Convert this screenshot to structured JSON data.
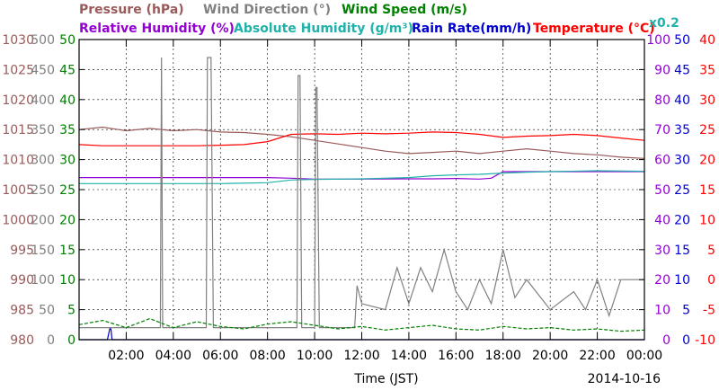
{
  "chart_data": {
    "type": "line",
    "date": "2014-10-16",
    "xlabel": "Time (JST)",
    "x_range_hours": [
      0,
      24
    ],
    "x_ticks": [
      "02:00",
      "04:00",
      "06:00",
      "08:00",
      "10:00",
      "12:00",
      "14:00",
      "16:00",
      "18:00",
      "20:00",
      "22:00",
      "00:00"
    ],
    "grid": true,
    "legend": [
      {
        "key": "pressure",
        "text": "Pressure (hPa)",
        "color": "#9a5a5a"
      },
      {
        "key": "wdir",
        "text": "Wind Direction (°)",
        "color": "#808080"
      },
      {
        "key": "wspd",
        "text": "Wind Speed (m/s)",
        "color": "#008000"
      },
      {
        "key": "rh",
        "text": "Relative Humidity (%)",
        "color": "#9400d3"
      },
      {
        "key": "ah",
        "text": "Absolute Humidity (g/m³)",
        "color": "#20b2aa"
      },
      {
        "key": "ah_factor",
        "text": "x0.2",
        "color": "#20b2aa"
      },
      {
        "key": "rain",
        "text": "Rain Rate(mm/h)",
        "color": "#0000cd"
      },
      {
        "key": "temp",
        "text": "Temperature (°C)",
        "color": "#ff0000"
      }
    ],
    "axes": {
      "pressure": {
        "ticks": [
          "980",
          "985",
          "990",
          "995",
          "1000",
          "1005",
          "1010",
          "1015",
          "1020",
          "1025",
          "1030"
        ],
        "range": [
          980,
          1030
        ],
        "color": "#9a5a5a"
      },
      "wdir": {
        "ticks": [
          "0",
          "50",
          "100",
          "150",
          "200",
          "250",
          "300",
          "350",
          "400",
          "450",
          "500"
        ],
        "range": [
          0,
          500
        ],
        "color": "#808080"
      },
      "wspd": {
        "ticks": [
          "0",
          "5",
          "10",
          "15",
          "20",
          "25",
          "30",
          "35",
          "40",
          "45",
          "50"
        ],
        "range": [
          0,
          50
        ],
        "color": "#008000"
      },
      "rh": {
        "ticks": [
          "0",
          "10",
          "20",
          "30",
          "40",
          "50",
          "60",
          "70",
          "80",
          "90",
          "100"
        ],
        "range": [
          0,
          100
        ],
        "color": "#9400d3"
      },
      "rain": {
        "ticks": [
          "0",
          "5",
          "10",
          "15",
          "20",
          "25",
          "30",
          "35",
          "40",
          "45",
          "50"
        ],
        "range": [
          0,
          50
        ],
        "color": "#0000cd"
      },
      "temp": {
        "ticks": [
          "-10",
          "-5",
          "0",
          "5",
          "10",
          "15",
          "20",
          "25",
          "30",
          "35",
          "40"
        ],
        "range": [
          -10,
          40
        ],
        "color": "#ff0000"
      }
    },
    "series": [
      {
        "name": "Pressure (hPa)",
        "color": "#9a5a5a",
        "x": [
          0,
          1,
          2,
          3,
          4,
          5,
          6,
          7,
          8,
          9,
          10,
          11,
          12,
          13,
          14,
          15,
          16,
          17,
          18,
          19,
          20,
          21,
          22,
          23,
          24
        ],
        "y": [
          1015.0,
          1015.4,
          1014.8,
          1015.2,
          1014.8,
          1015.0,
          1014.6,
          1014.5,
          1014.2,
          1013.8,
          1013.2,
          1012.6,
          1012.0,
          1011.4,
          1011.0,
          1011.2,
          1011.4,
          1011.0,
          1011.4,
          1011.8,
          1011.4,
          1011.0,
          1010.8,
          1010.4,
          1010.2
        ]
      },
      {
        "name": "Temperature (°C)",
        "color": "#ff0000",
        "x": [
          0,
          1,
          2,
          3,
          4,
          5,
          6,
          7,
          8,
          9,
          10,
          11,
          12,
          13,
          14,
          15,
          16,
          17,
          18,
          19,
          20,
          21,
          22,
          23,
          24
        ],
        "y": [
          22.5,
          22.3,
          22.3,
          22.3,
          22.3,
          22.3,
          22.4,
          22.5,
          23.0,
          24.2,
          24.3,
          24.2,
          24.4,
          24.3,
          24.4,
          24.6,
          24.5,
          24.2,
          23.7,
          23.9,
          24.0,
          24.2,
          24.0,
          23.6,
          23.2
        ]
      },
      {
        "name": "Relative Humidity (%)",
        "color": "#9400d3",
        "x": [
          0,
          2,
          4,
          6,
          8,
          9,
          10,
          12,
          14,
          15,
          16,
          17,
          17.5,
          18,
          20,
          22,
          24
        ],
        "y": [
          54.0,
          54.0,
          54.0,
          54.0,
          54.0,
          53.8,
          53.5,
          53.5,
          53.6,
          53.6,
          53.7,
          53.5,
          53.8,
          56.0,
          56.0,
          56.0,
          56.0
        ]
      },
      {
        "name": "Absolute Humidity (g/m³) x0.2",
        "color": "#20b2aa",
        "x": [
          0,
          2,
          4,
          6,
          8,
          9,
          10,
          12,
          14,
          15,
          16,
          17,
          18,
          19,
          20,
          22,
          24
        ],
        "y": [
          52.0,
          52.0,
          52.0,
          52.0,
          52.3,
          53.2,
          53.4,
          53.6,
          54.0,
          54.6,
          54.9,
          55.1,
          55.5,
          55.8,
          56.0,
          56.3,
          56.1
        ]
      },
      {
        "name": "Wind Direction (°)",
        "color": "#808080",
        "x": [
          0,
          3.45,
          3.5,
          3.55,
          5.4,
          5.45,
          5.6,
          5.7,
          7,
          9.25,
          9.3,
          9.38,
          9.45,
          10.0,
          10.05,
          10.1,
          10.2,
          11.7,
          11.8,
          12,
          13,
          13.5,
          14,
          14.5,
          15,
          15.5,
          16,
          16.5,
          17,
          17.5,
          18,
          18.5,
          19,
          20,
          21,
          21.5,
          22,
          22.5,
          23,
          24
        ],
        "y": [
          20,
          20,
          470,
          20,
          20,
          470,
          470,
          20,
          20,
          20,
          440,
          440,
          20,
          20,
          420,
          420,
          20,
          20,
          90,
          60,
          50,
          120,
          60,
          120,
          80,
          150,
          80,
          50,
          100,
          60,
          150,
          70,
          100,
          50,
          80,
          50,
          100,
          40,
          100,
          100
        ]
      },
      {
        "name": "Wind Speed (m/s)",
        "color": "#008000",
        "x": [
          0,
          1,
          2,
          3,
          4,
          5,
          6,
          7,
          8,
          9,
          10,
          11,
          12,
          13,
          14,
          15,
          16,
          17,
          18,
          19,
          20,
          21,
          22,
          23,
          24
        ],
        "y": [
          2.5,
          3.2,
          2.0,
          3.5,
          2.0,
          3.0,
          2.2,
          1.8,
          2.6,
          3.0,
          2.4,
          1.8,
          2.2,
          1.6,
          2.0,
          2.4,
          1.8,
          1.6,
          2.2,
          1.8,
          2.0,
          1.6,
          1.8,
          1.4,
          1.6
        ]
      },
      {
        "name": "Rain Rate(mm/h)",
        "color": "#0000cd",
        "x": [
          0,
          1.2,
          1.3,
          1.35,
          1.4,
          24
        ],
        "y": [
          0,
          0,
          1.8,
          1.8,
          0,
          0
        ]
      }
    ]
  }
}
